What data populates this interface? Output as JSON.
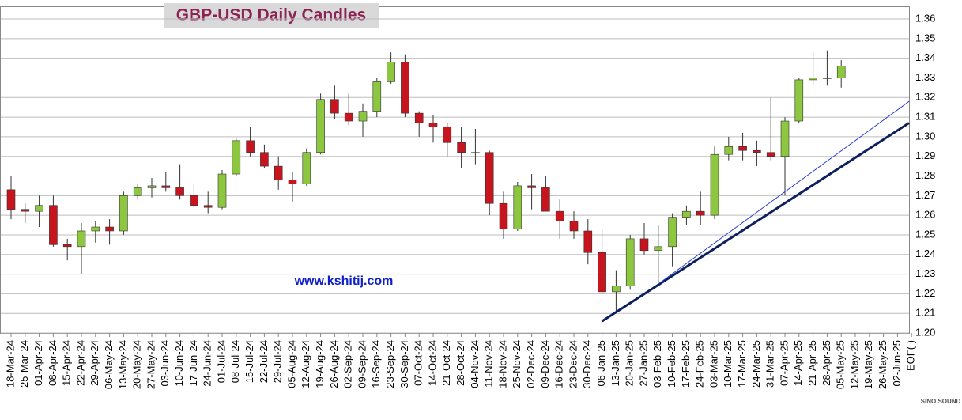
{
  "chart_data": {
    "type": "candlestick",
    "title": "GBP-USD Daily Candles",
    "annotation": "www.kshitij.com",
    "logo": "SINO SOUND",
    "categories": [
      "18-Mar-24",
      "25-Mar-24",
      "01-Apr-24",
      "08-Apr-24",
      "15-Apr-24",
      "22-Apr-24",
      "29-Apr-24",
      "06-May-24",
      "13-May-24",
      "20-May-24",
      "27-May-24",
      "03-Jun-24",
      "10-Jun-24",
      "17-Jun-24",
      "24-Jun-24",
      "01-Jul-24",
      "08-Jul-24",
      "15-Jul-24",
      "22-Jul-24",
      "29-Jul-24",
      "05-Aug-24",
      "12-Aug-24",
      "19-Aug-24",
      "26-Aug-24",
      "02-Sep-24",
      "09-Sep-24",
      "16-Sep-24",
      "23-Sep-24",
      "30-Sep-24",
      "07-Oct-24",
      "14-Oct-24",
      "21-Oct-24",
      "28-Oct-24",
      "04-Nov-24",
      "11-Nov-24",
      "18-Nov-24",
      "25-Nov-24",
      "02-Dec-24",
      "09-Dec-24",
      "16-Dec-24",
      "23-Dec-24",
      "30-Dec-24",
      "06-Jan-25",
      "13-Jan-25",
      "20-Jan-25",
      "27-Jan-25",
      "03-Feb-25",
      "10-Feb-25",
      "17-Feb-25",
      "24-Feb-25",
      "03-Mar-25",
      "10-Mar-25",
      "17-Mar-25",
      "24-Mar-25",
      "31-Mar-25",
      "07-Apr-25",
      "14-Apr-25",
      "21-Apr-25",
      "28-Apr-25",
      "05-May-25",
      "12-May-25",
      "19-May-25",
      "26-May-25",
      "02-Jun-25",
      "EOF( )"
    ],
    "open": [
      1.273,
      1.263,
      1.262,
      1.265,
      1.245,
      1.244,
      1.252,
      1.254,
      1.252,
      1.27,
      1.274,
      1.275,
      1.274,
      1.27,
      1.265,
      1.264,
      1.281,
      1.298,
      1.292,
      1.285,
      1.278,
      1.276,
      1.292,
      1.319,
      1.312,
      1.308,
      1.313,
      1.328,
      1.338,
      1.312,
      1.307,
      1.305,
      1.297,
      1.292,
      1.292,
      1.266,
      1.253,
      1.275,
      1.274,
      1.262,
      1.257,
      1.252,
      1.241,
      1.221,
      1.224,
      1.248,
      1.242,
      1.244,
      1.259,
      1.262,
      1.26,
      1.291,
      1.295,
      1.293,
      1.292,
      1.29,
      1.308,
      1.329,
      1.33,
      1.33,
      null,
      null,
      null,
      null,
      null
    ],
    "high": [
      1.28,
      1.266,
      1.27,
      1.27,
      1.248,
      1.256,
      1.257,
      1.258,
      1.272,
      1.276,
      1.279,
      1.282,
      1.286,
      1.276,
      1.272,
      1.283,
      1.299,
      1.305,
      1.296,
      1.29,
      1.282,
      1.294,
      1.322,
      1.326,
      1.322,
      1.317,
      1.33,
      1.343,
      1.342,
      1.313,
      1.311,
      1.307,
      1.305,
      1.304,
      1.293,
      1.272,
      1.277,
      1.281,
      1.28,
      1.268,
      1.262,
      1.258,
      1.253,
      1.232,
      1.25,
      1.256,
      1.255,
      1.261,
      1.265,
      1.272,
      1.295,
      1.3,
      1.302,
      1.298,
      1.32,
      1.31,
      1.33,
      1.343,
      1.344,
      1.339,
      null,
      null,
      null,
      null,
      null
    ],
    "low": [
      1.258,
      1.256,
      1.254,
      1.244,
      1.237,
      1.23,
      1.246,
      1.245,
      1.25,
      1.268,
      1.269,
      1.272,
      1.268,
      1.264,
      1.261,
      1.263,
      1.28,
      1.29,
      1.284,
      1.273,
      1.267,
      1.275,
      1.291,
      1.309,
      1.306,
      1.3,
      1.31,
      1.327,
      1.31,
      1.3,
      1.297,
      1.29,
      1.284,
      1.286,
      1.26,
      1.248,
      1.252,
      1.263,
      1.262,
      1.248,
      1.248,
      1.235,
      1.22,
      1.211,
      1.222,
      1.24,
      1.226,
      1.234,
      1.255,
      1.255,
      1.258,
      1.288,
      1.288,
      1.285,
      1.288,
      1.27,
      1.307,
      1.326,
      1.326,
      1.325,
      null,
      null,
      null,
      null,
      null
    ],
    "close": [
      1.263,
      1.262,
      1.265,
      1.245,
      1.244,
      1.252,
      1.254,
      1.252,
      1.27,
      1.274,
      1.275,
      1.274,
      1.27,
      1.265,
      1.264,
      1.281,
      1.298,
      1.292,
      1.285,
      1.278,
      1.276,
      1.292,
      1.319,
      1.312,
      1.308,
      1.313,
      1.328,
      1.338,
      1.312,
      1.307,
      1.305,
      1.297,
      1.292,
      1.292,
      1.266,
      1.253,
      1.275,
      1.274,
      1.262,
      1.257,
      1.252,
      1.241,
      1.221,
      1.224,
      1.248,
      1.242,
      1.244,
      1.259,
      1.262,
      1.26,
      1.291,
      1.295,
      1.293,
      1.292,
      1.29,
      1.308,
      1.329,
      1.33,
      1.33,
      1.336,
      null,
      null,
      null,
      null,
      null
    ],
    "up_color": "#8dc63f",
    "down_color": "#c8141e",
    "trendlines": [
      {
        "color": "#0d1f5c",
        "from": {
          "x": "06-Jan-25",
          "y": 1.206
        },
        "to": {
          "x": "EOF( )",
          "y": 1.307
        }
      },
      {
        "color": "#2a3fd6",
        "from": {
          "x": "03-Feb-25",
          "y": 1.225
        },
        "to": {
          "x": "EOF( )",
          "y": 1.318
        }
      }
    ],
    "ylim": [
      1.2,
      1.36
    ],
    "yticks": [
      {
        "value": 1.2,
        "label": "1.20"
      },
      1.21,
      1.22,
      1.23,
      1.24,
      1.25,
      1.26,
      1.27,
      1.28,
      1.29,
      {
        "value": 1.3,
        "label": "1.30"
      },
      1.31,
      1.32,
      1.33,
      1.34,
      1.35,
      1.36
    ],
    "grid": true
  }
}
